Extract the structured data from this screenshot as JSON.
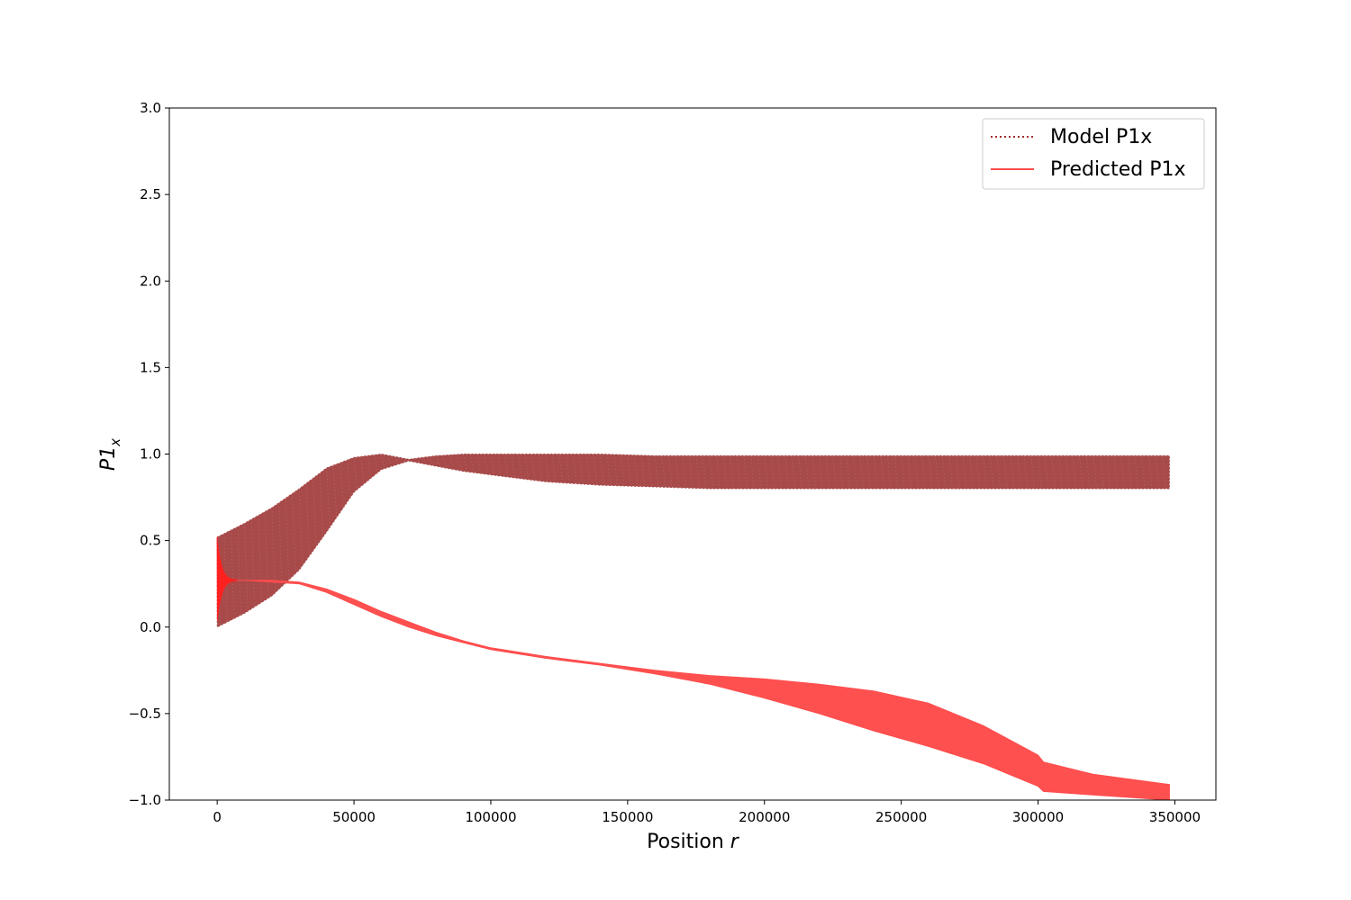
{
  "chart_data": {
    "type": "line",
    "title": "",
    "xlabel_text": "Position ",
    "xlabel_var": "r",
    "ylabel_main": "P1",
    "ylabel_sub": "x",
    "xlim": [
      -17500,
      365000
    ],
    "ylim": [
      -1.0,
      3.0
    ],
    "x_ticks": [
      0,
      50000,
      100000,
      150000,
      200000,
      250000,
      300000,
      350000
    ],
    "x_tick_labels": [
      "0",
      "50000",
      "100000",
      "150000",
      "200000",
      "250000",
      "300000",
      "350000"
    ],
    "y_ticks": [
      -1.0,
      -0.5,
      0.0,
      0.5,
      1.0,
      1.5,
      2.0,
      2.5,
      3.0
    ],
    "y_tick_labels": [
      "−1.0",
      "−0.5",
      "0.0",
      "0.5",
      "1.0",
      "1.5",
      "2.0",
      "2.5",
      "3.0"
    ],
    "grid": false,
    "legend": {
      "placement": "top-right",
      "entries": [
        {
          "label": "Model P1x",
          "style": "dotted",
          "color": "#a0302e"
        },
        {
          "label": "Predicted P1x",
          "style": "solid",
          "color": "#ff4c4c"
        }
      ]
    },
    "series": [
      {
        "name": "Model P1x",
        "style": "dotted",
        "color": "#a84a4a",
        "x": [
          0,
          5000,
          10000,
          20000,
          30000,
          40000,
          50000,
          60000,
          70000,
          80000,
          90000,
          100000,
          120000,
          140000,
          160000,
          180000,
          200000,
          250000,
          300000,
          348000
        ],
        "upper": [
          0.52,
          0.56,
          0.6,
          0.69,
          0.8,
          0.92,
          0.98,
          1.0,
          0.97,
          0.99,
          1.0,
          1.0,
          1.0,
          1.0,
          0.99,
          0.99,
          0.99,
          0.99,
          0.99,
          0.99
        ],
        "lower": [
          0.0,
          0.04,
          0.08,
          0.18,
          0.33,
          0.55,
          0.78,
          0.91,
          0.96,
          0.93,
          0.9,
          0.88,
          0.84,
          0.82,
          0.81,
          0.8,
          0.8,
          0.8,
          0.8,
          0.8
        ]
      },
      {
        "name": "Predicted P1x",
        "style": "solid",
        "color": "#ff4c4c",
        "x": [
          0,
          5000,
          10000,
          20000,
          30000,
          40000,
          50000,
          60000,
          70000,
          80000,
          90000,
          100000,
          120000,
          140000,
          160000,
          180000,
          200000,
          220000,
          240000,
          260000,
          280000,
          300000,
          302000,
          320000,
          348000
        ],
        "upper": [
          0.27,
          0.27,
          0.27,
          0.27,
          0.26,
          0.22,
          0.16,
          0.09,
          0.03,
          -0.03,
          -0.08,
          -0.12,
          -0.17,
          -0.21,
          -0.25,
          -0.28,
          -0.3,
          -0.33,
          -0.37,
          -0.44,
          -0.57,
          -0.74,
          -0.78,
          -0.85,
          -0.91
        ],
        "lower": [
          0.27,
          0.27,
          0.27,
          0.26,
          0.25,
          0.2,
          0.13,
          0.06,
          0.0,
          -0.05,
          -0.09,
          -0.13,
          -0.18,
          -0.22,
          -0.27,
          -0.33,
          -0.41,
          -0.5,
          -0.6,
          -0.69,
          -0.79,
          -0.92,
          -0.95,
          -0.97,
          -1.0
        ]
      }
    ],
    "transient": {
      "x_start": 0,
      "x_end": 7000,
      "center": 0.27,
      "upper": 0.52,
      "lower": 0.02
    }
  }
}
